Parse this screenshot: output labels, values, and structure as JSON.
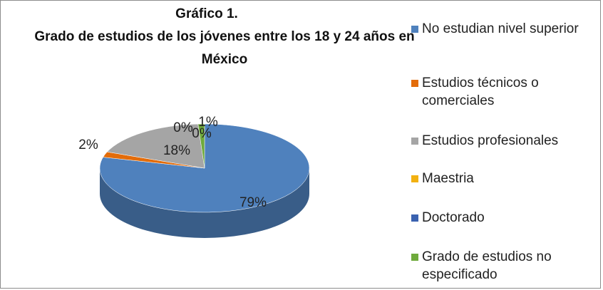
{
  "chart_data": {
    "type": "pie3d",
    "title": "Gráfico  1.",
    "subtitle": "Grado de estudios de los jóvenes entre los 18 y 24 años en México",
    "categories": [
      "No estudian nivel superior",
      "Estudios técnicos o comerciales",
      "Estudios profesionales",
      "Maestria",
      "Doctorado",
      "Grado de estudios no especificado"
    ],
    "values": [
      79,
      2,
      18,
      0,
      0,
      1
    ],
    "value_labels": [
      "79%",
      "2%",
      "18%",
      "0%",
      "0%",
      "1%"
    ],
    "colors": [
      "#4f81bd",
      "#e36c0a",
      "#a5a5a5",
      "#f2b111",
      "#3a62b0",
      "#6faa3c"
    ],
    "legend": "right"
  }
}
